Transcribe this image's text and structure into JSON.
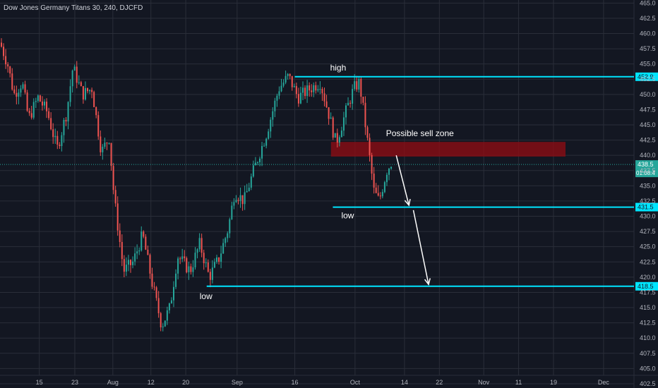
{
  "header": {
    "title": "Dow Jones Germany Titans 30, 240, DJCFD"
  },
  "colors": {
    "background": "#131722",
    "grid": "#2a2e39",
    "up": "#26a69a",
    "down": "#ef5350",
    "level": "#00e5ff",
    "zone": "#8b0d14",
    "text": "#b2b5be",
    "current": "#26a69a"
  },
  "chart_data": {
    "type": "candlestick",
    "title": "Dow Jones Germany Titans 30, 240, DJCFD",
    "ylim": [
      401.8,
      465.5
    ],
    "y_ticks": [
      "402.5",
      "405.0",
      "407.5",
      "410.0",
      "412.5",
      "415.0",
      "417.5",
      "420.0",
      "422.5",
      "425.0",
      "427.5",
      "430.0",
      "432.5",
      "435.0",
      "437.5",
      "440.0",
      "442.5",
      "445.0",
      "447.5",
      "450.0",
      "452.5",
      "455.0",
      "457.5",
      "460.0",
      "462.5",
      "465.0"
    ],
    "x_ticks": [
      {
        "label": "15",
        "pos": 0.062
      },
      {
        "label": "23",
        "pos": 0.118
      },
      {
        "label": "Aug",
        "pos": 0.178
      },
      {
        "label": "12",
        "pos": 0.238
      },
      {
        "label": "20",
        "pos": 0.293
      },
      {
        "label": "Sep",
        "pos": 0.374
      },
      {
        "label": "16",
        "pos": 0.465
      },
      {
        "label": "Oct",
        "pos": 0.56
      },
      {
        "label": "14",
        "pos": 0.638
      },
      {
        "label": "22",
        "pos": 0.693
      },
      {
        "label": "Nov",
        "pos": 0.763
      },
      {
        "label": "11",
        "pos": 0.818
      },
      {
        "label": "19",
        "pos": 0.873
      },
      {
        "label": "Dec",
        "pos": 0.952
      }
    ],
    "price_path": [
      [
        0.0,
        458.5
      ],
      [
        0.012,
        455.0
      ],
      [
        0.022,
        450.0
      ],
      [
        0.035,
        452.0
      ],
      [
        0.045,
        446.0
      ],
      [
        0.06,
        449.5
      ],
      [
        0.075,
        447.0
      ],
      [
        0.09,
        441.0
      ],
      [
        0.105,
        447.0
      ],
      [
        0.115,
        454.5
      ],
      [
        0.13,
        450.0
      ],
      [
        0.145,
        451.0
      ],
      [
        0.16,
        440.5
      ],
      [
        0.172,
        443.0
      ],
      [
        0.18,
        433.0
      ],
      [
        0.195,
        421.0
      ],
      [
        0.21,
        422.5
      ],
      [
        0.225,
        427.0
      ],
      [
        0.24,
        419.0
      ],
      [
        0.255,
        412.0
      ],
      [
        0.268,
        415.0
      ],
      [
        0.28,
        423.5
      ],
      [
        0.3,
        421.0
      ],
      [
        0.315,
        425.5
      ],
      [
        0.33,
        420.0
      ],
      [
        0.345,
        423.0
      ],
      [
        0.36,
        428.0
      ],
      [
        0.37,
        434.0
      ],
      [
        0.385,
        432.5
      ],
      [
        0.4,
        437.5
      ],
      [
        0.42,
        443.5
      ],
      [
        0.44,
        451.0
      ],
      [
        0.455,
        453.0
      ],
      [
        0.47,
        449.5
      ],
      [
        0.49,
        451.0
      ],
      [
        0.505,
        452.0
      ],
      [
        0.518,
        447.0
      ],
      [
        0.53,
        442.0
      ],
      [
        0.545,
        447.0
      ],
      [
        0.558,
        451.0
      ],
      [
        0.567,
        452.0
      ],
      [
        0.575,
        446.0
      ],
      [
        0.585,
        438.0
      ],
      [
        0.59,
        434.0
      ],
      [
        0.598,
        432.5
      ],
      [
        0.61,
        437.5
      ],
      [
        0.618,
        439.0
      ]
    ],
    "current_price": "438.5",
    "countdown": "01:08:4",
    "levels": [
      {
        "name": "high",
        "label": "high",
        "price": 452.9,
        "tag": "452.9",
        "x_start": 0.465
      },
      {
        "name": "low-1",
        "label": "low",
        "price": 431.5,
        "tag": "431.5",
        "x_start": 0.525
      },
      {
        "name": "low-2",
        "label": "low",
        "price": 418.5,
        "tag": "418.5",
        "x_start": 0.326
      }
    ],
    "sell_zone": {
      "label": "Possible sell zone",
      "x": [
        0.522,
        0.892
      ],
      "price": [
        439.8,
        442.2
      ]
    },
    "arrows": [
      {
        "from": [
          0.625,
          440.0
        ],
        "to": [
          0.645,
          431.8
        ]
      },
      {
        "from": [
          0.652,
          431.0
        ],
        "to": [
          0.676,
          418.8
        ]
      }
    ]
  }
}
